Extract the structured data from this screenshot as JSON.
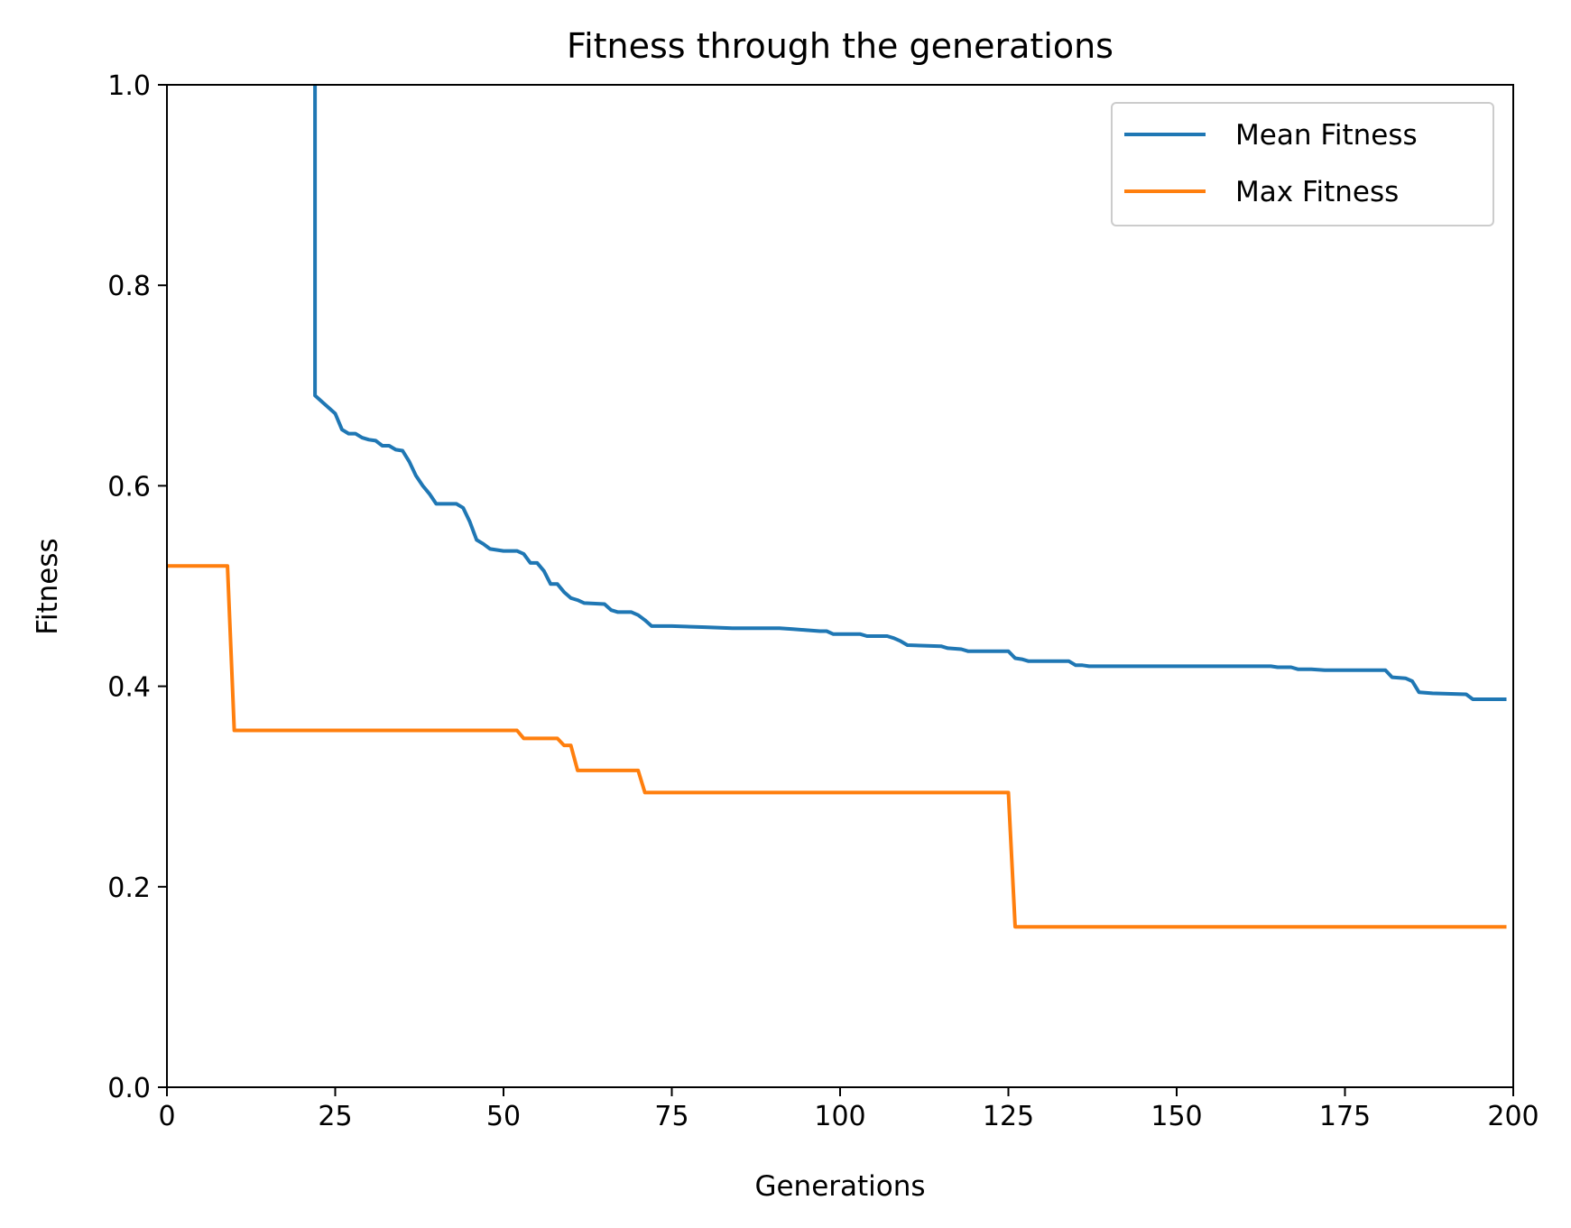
{
  "chart_data": {
    "type": "line",
    "title": "Fitness through the generations",
    "xlabel": "Generations",
    "ylabel": "Fitness",
    "xlim": [
      0,
      200
    ],
    "ylim": [
      0.0,
      1.0
    ],
    "xticks": [
      0,
      25,
      50,
      75,
      100,
      125,
      150,
      175,
      200
    ],
    "xtick_labels": [
      "0",
      "25",
      "50",
      "75",
      "100",
      "125",
      "150",
      "175",
      "200"
    ],
    "yticks": [
      0.0,
      0.2,
      0.4,
      0.6,
      0.8,
      1.0
    ],
    "ytick_labels": [
      "0.0",
      "0.2",
      "0.4",
      "0.6",
      "0.8",
      "1.0"
    ],
    "grid": false,
    "legend_position": "top-right",
    "series": [
      {
        "name": "Mean Fitness",
        "color": "#1f77b4",
        "points": [
          [
            22,
            1.02
          ],
          [
            22,
            0.69
          ],
          [
            25,
            0.672
          ],
          [
            26,
            0.656
          ],
          [
            27,
            0.652
          ],
          [
            28,
            0.652
          ],
          [
            29,
            0.648
          ],
          [
            30,
            0.646
          ],
          [
            31,
            0.645
          ],
          [
            32,
            0.64
          ],
          [
            33,
            0.64
          ],
          [
            34,
            0.636
          ],
          [
            35,
            0.635
          ],
          [
            36,
            0.624
          ],
          [
            37,
            0.61
          ],
          [
            38,
            0.6
          ],
          [
            39,
            0.592
          ],
          [
            40,
            0.582
          ],
          [
            43,
            0.582
          ],
          [
            44,
            0.578
          ],
          [
            45,
            0.564
          ],
          [
            46,
            0.546
          ],
          [
            47,
            0.542
          ],
          [
            48,
            0.537
          ],
          [
            50,
            0.535
          ],
          [
            52,
            0.535
          ],
          [
            53,
            0.532
          ],
          [
            54,
            0.523
          ],
          [
            55,
            0.523
          ],
          [
            56,
            0.515
          ],
          [
            57,
            0.502
          ],
          [
            58,
            0.502
          ],
          [
            59,
            0.494
          ],
          [
            60,
            0.488
          ],
          [
            61,
            0.486
          ],
          [
            62,
            0.483
          ],
          [
            65,
            0.482
          ],
          [
            66,
            0.476
          ],
          [
            67,
            0.474
          ],
          [
            69,
            0.474
          ],
          [
            70,
            0.471
          ],
          [
            71,
            0.466
          ],
          [
            72,
            0.46
          ],
          [
            75,
            0.46
          ],
          [
            80,
            0.459
          ],
          [
            84,
            0.458
          ],
          [
            91,
            0.458
          ],
          [
            93,
            0.457
          ],
          [
            95,
            0.456
          ],
          [
            97,
            0.455
          ],
          [
            98,
            0.455
          ],
          [
            99,
            0.452
          ],
          [
            103,
            0.452
          ],
          [
            104,
            0.45
          ],
          [
            107,
            0.45
          ],
          [
            108,
            0.448
          ],
          [
            109,
            0.445
          ],
          [
            110,
            0.441
          ],
          [
            115,
            0.44
          ],
          [
            116,
            0.438
          ],
          [
            118,
            0.437
          ],
          [
            119,
            0.435
          ],
          [
            125,
            0.435
          ],
          [
            126,
            0.428
          ],
          [
            127,
            0.427
          ],
          [
            128,
            0.425
          ],
          [
            134,
            0.425
          ],
          [
            135,
            0.421
          ],
          [
            136,
            0.421
          ],
          [
            137,
            0.42
          ],
          [
            160,
            0.42
          ],
          [
            164,
            0.42
          ],
          [
            165,
            0.419
          ],
          [
            167,
            0.419
          ],
          [
            168,
            0.417
          ],
          [
            170,
            0.417
          ],
          [
            172,
            0.416
          ],
          [
            181,
            0.416
          ],
          [
            182,
            0.409
          ],
          [
            184,
            0.408
          ],
          [
            185,
            0.405
          ],
          [
            186,
            0.394
          ],
          [
            188,
            0.393
          ],
          [
            193,
            0.392
          ],
          [
            194,
            0.387
          ],
          [
            199,
            0.387
          ]
        ]
      },
      {
        "name": "Max Fitness",
        "color": "#ff7f0e",
        "points": [
          [
            0,
            0.52
          ],
          [
            9,
            0.52
          ],
          [
            10,
            0.356
          ],
          [
            52,
            0.356
          ],
          [
            53,
            0.348
          ],
          [
            58,
            0.348
          ],
          [
            59,
            0.341
          ],
          [
            60,
            0.341
          ],
          [
            61,
            0.316
          ],
          [
            70,
            0.316
          ],
          [
            71,
            0.294
          ],
          [
            125,
            0.294
          ],
          [
            126,
            0.16
          ],
          [
            199,
            0.16
          ]
        ]
      }
    ]
  }
}
